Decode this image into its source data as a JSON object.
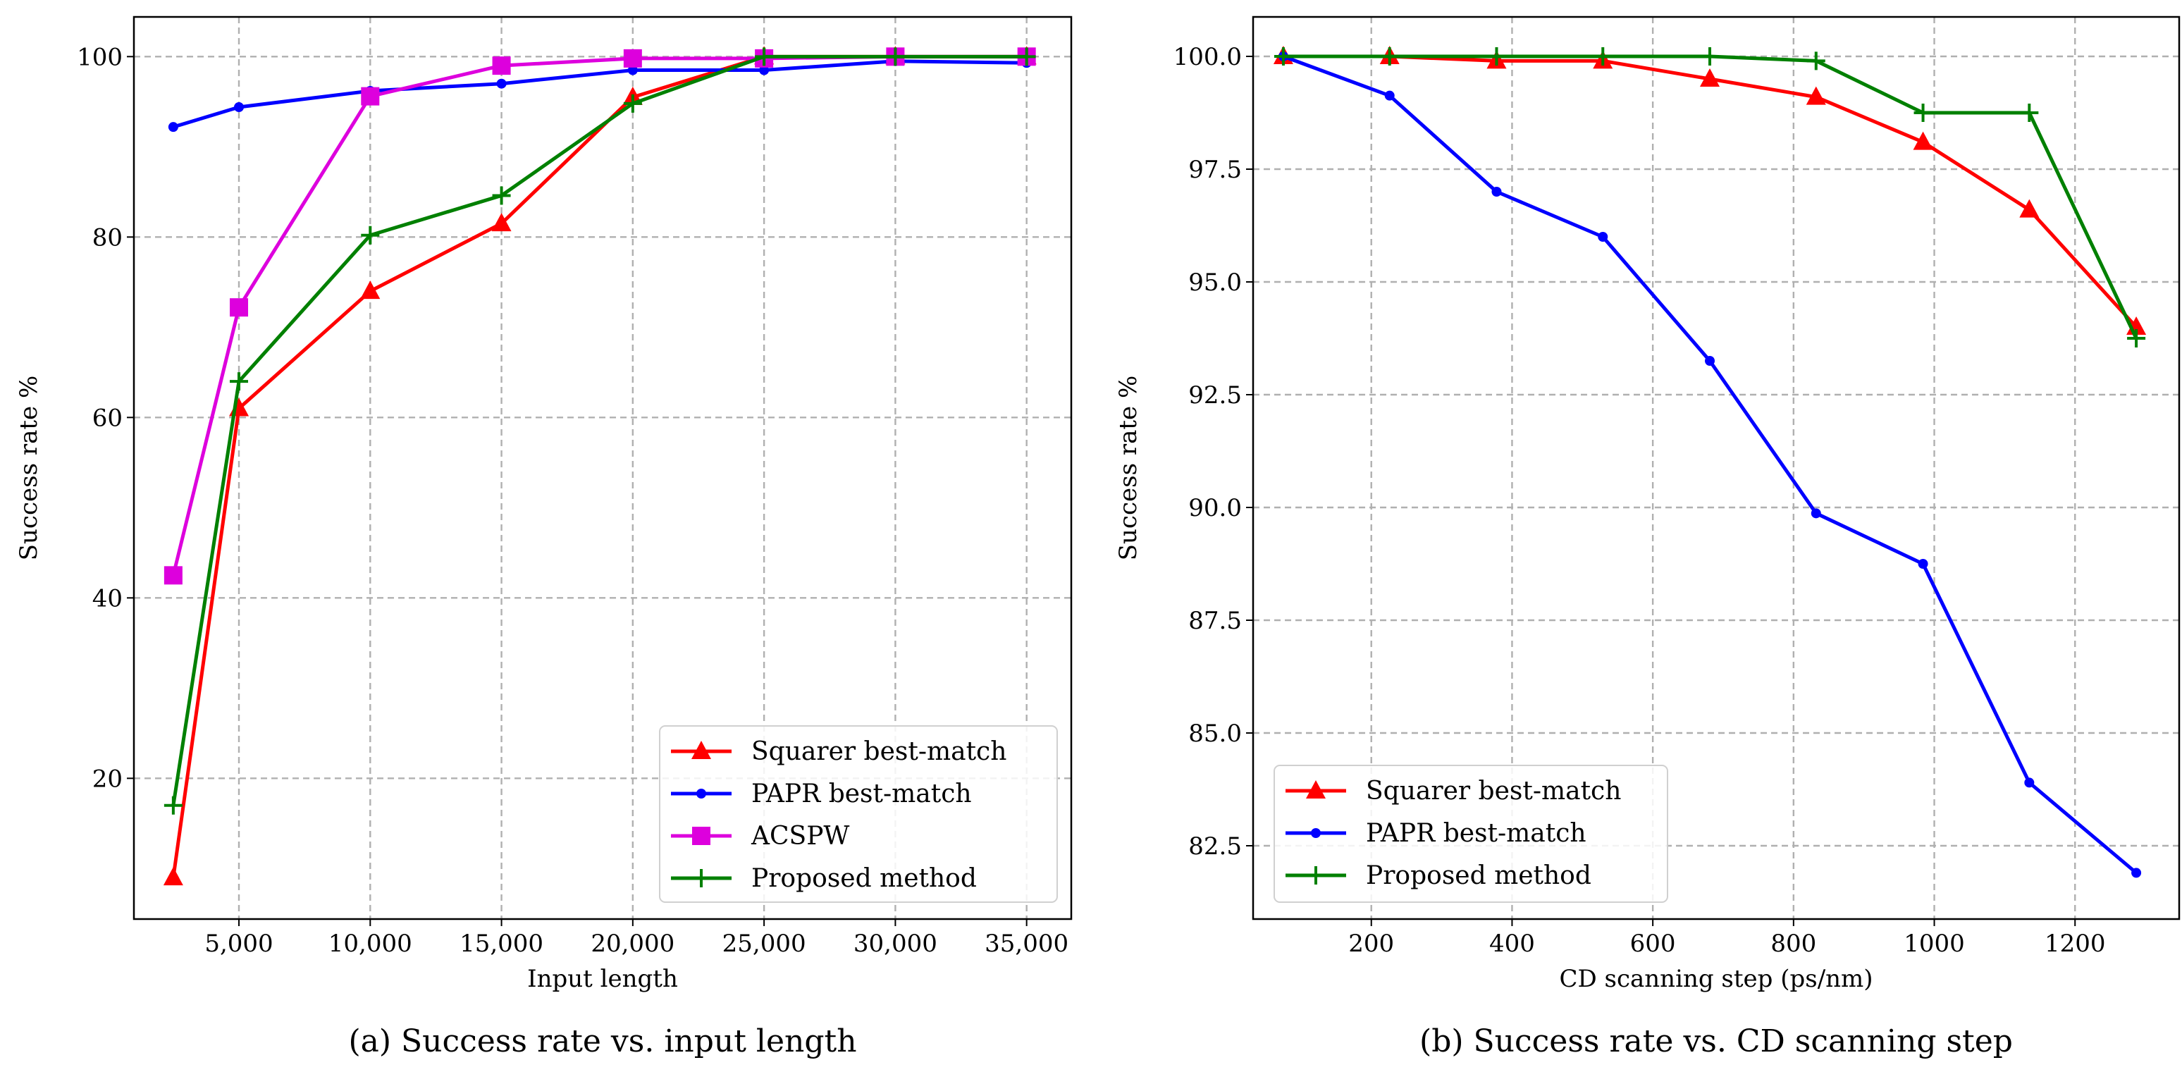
{
  "chart_data": [
    {
      "type": "line",
      "caption": "(a) Success rate vs. input length",
      "xlabel": "Input length",
      "ylabel": "Success rate %",
      "xlim": [
        1000,
        36700
      ],
      "ylim": [
        4.4,
        104.4
      ],
      "xticks": [
        5000,
        10000,
        15000,
        20000,
        25000,
        30000,
        35000
      ],
      "xtick_labels": [
        "5,000",
        "10,000",
        "15,000",
        "20,000",
        "25,000",
        "30,000",
        "35,000"
      ],
      "yticks": [
        20,
        40,
        60,
        80,
        100
      ],
      "ytick_labels": [
        "20",
        "40",
        "60",
        "80",
        "100"
      ],
      "grid": true,
      "legend_position": "bottom-right",
      "x": [
        2500,
        5000,
        10000,
        15000,
        20000,
        25000,
        30000,
        35000
      ],
      "series": [
        {
          "name": "Squarer best-match",
          "color": "#ff0000",
          "marker": "triangle",
          "values": [
            9,
            61,
            74,
            81.5,
            95.5,
            100,
            100,
            100
          ]
        },
        {
          "name": "PAPR best-match",
          "color": "#0000ff",
          "marker": "circle",
          "values": [
            92.2,
            94.4,
            96.2,
            97.0,
            98.5,
            98.5,
            99.5,
            99.3
          ]
        },
        {
          "name": "ACSPW",
          "color": "#dd00dd",
          "marker": "square",
          "values": [
            42.5,
            72.2,
            95.6,
            99.0,
            99.8,
            99.8,
            100,
            100
          ]
        },
        {
          "name": "Proposed method",
          "color": "#008000",
          "marker": "plus",
          "values": [
            17,
            64,
            80.2,
            84.6,
            94.8,
            100,
            100,
            100
          ]
        }
      ]
    },
    {
      "type": "line",
      "caption": "(b) Success rate vs. CD scanning step",
      "xlabel": "CD scanning step (ps/nm)",
      "ylabel": "Success rate %",
      "xlim": [
        32,
        1348
      ],
      "ylim": [
        80.875,
        100.875
      ],
      "xticks": [
        200,
        400,
        600,
        800,
        1000,
        1200
      ],
      "xtick_labels": [
        "200",
        "400",
        "600",
        "800",
        "1000",
        "1200"
      ],
      "yticks": [
        82.5,
        85.0,
        87.5,
        90.0,
        92.5,
        95.0,
        97.5,
        100.0
      ],
      "ytick_labels": [
        "82.5",
        "85.0",
        "87.5",
        "90.0",
        "92.5",
        "95.0",
        "97.5",
        "100.0"
      ],
      "grid": true,
      "legend_position": "bottom-left",
      "x": [
        75,
        226,
        378,
        529,
        681,
        832,
        984,
        1135,
        1287
      ],
      "series": [
        {
          "name": "Squarer best-match",
          "color": "#ff0000",
          "marker": "triangle",
          "values": [
            100,
            100,
            99.9,
            99.9,
            99.5,
            99.1,
            98.1,
            96.6,
            94.0
          ]
        },
        {
          "name": "PAPR best-match",
          "color": "#0000ff",
          "marker": "circle",
          "values": [
            100,
            99.13,
            97.0,
            96.0,
            93.25,
            89.87,
            88.75,
            83.9,
            81.9
          ]
        },
        {
          "name": "Proposed method",
          "color": "#008000",
          "marker": "plus",
          "values": [
            100,
            100,
            100,
            100,
            100,
            99.9,
            98.75,
            98.75,
            93.75
          ]
        }
      ]
    }
  ]
}
